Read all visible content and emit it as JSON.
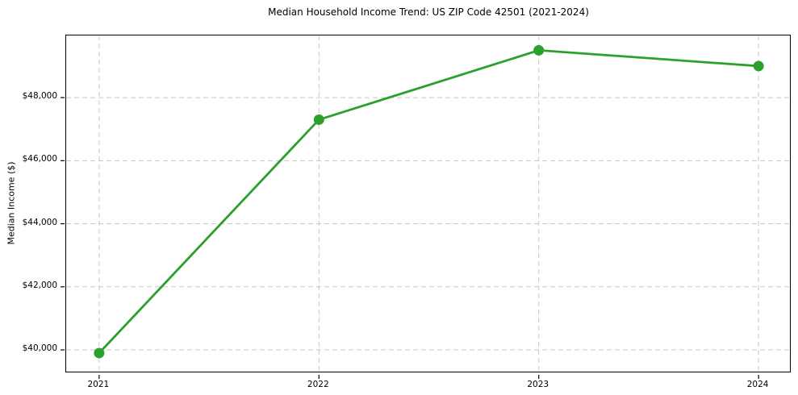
{
  "chart_data": {
    "type": "line",
    "title": "Median Household Income Trend: US ZIP Code 42501 (2021-2024)",
    "xlabel": "",
    "ylabel": "Median Income ($)",
    "x": [
      2021,
      2022,
      2023,
      2024
    ],
    "values": [
      39900,
      47300,
      49500,
      49000
    ],
    "x_tick_labels": [
      "2021",
      "2022",
      "2023",
      "2024"
    ],
    "y_ticks": [
      40000,
      42000,
      44000,
      46000,
      48000
    ],
    "y_tick_labels": [
      "$40,000",
      "$42,000",
      "$44,000",
      "$46,000",
      "$48,000"
    ],
    "xlim": [
      2020.85,
      2024.15
    ],
    "ylim": [
      39260,
      49970
    ],
    "grid": true,
    "grid_style": "dashed",
    "legend": false,
    "line_color": "#2ca02c",
    "grid_color": "#c8c8c8",
    "axis_color": "#000000",
    "marker": "circle"
  }
}
